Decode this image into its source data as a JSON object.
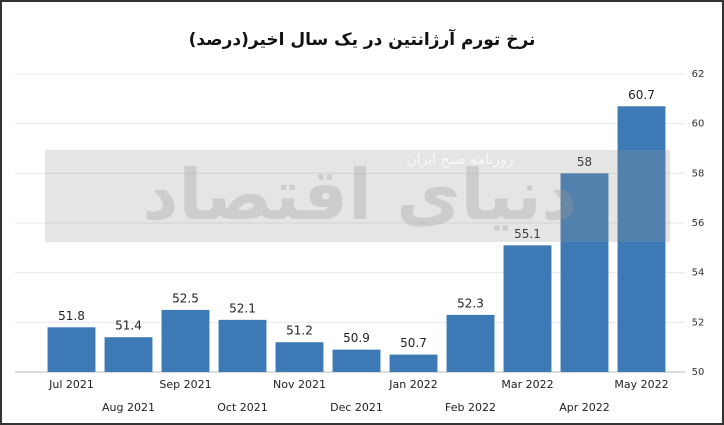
{
  "chart_data": {
    "type": "bar",
    "title": "نرخ تورم آرژانتین در یک سال اخیر(درصد)",
    "watermark": "دنیای اقتصاد",
    "watermark_subtitle": "روزنامه صبح ایران",
    "categories": [
      "Jul 2021",
      "Aug 2021",
      "Sep 2021",
      "Oct 2021",
      "Nov 2021",
      "Dec 2021",
      "Jan 2022",
      "Feb 2022",
      "Mar 2022",
      "Apr 2022",
      "May 2022"
    ],
    "values": [
      51.8,
      51.4,
      52.5,
      52.1,
      51.2,
      50.9,
      50.7,
      52.3,
      55.1,
      58,
      60.7
    ],
    "color": "#3d7ab5",
    "ylim": [
      50,
      62
    ],
    "yticks": [
      50,
      52,
      54,
      56,
      58,
      60,
      62
    ],
    "grid": true
  }
}
